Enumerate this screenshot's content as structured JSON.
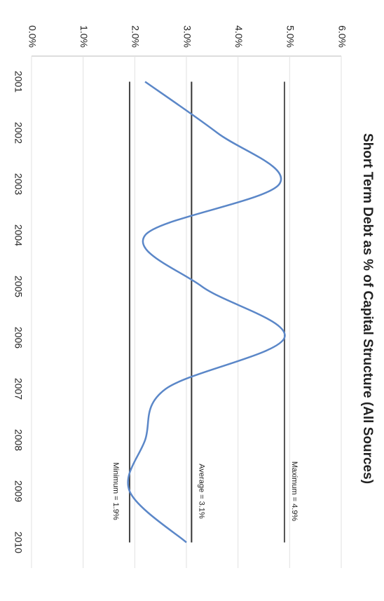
{
  "chart_data": {
    "type": "line",
    "title": "Short Term Debt as % of Capital Structure (All Sources)",
    "categories": [
      "2001",
      "2002",
      "2003",
      "2004",
      "2005",
      "2006",
      "2007",
      "2008",
      "2009",
      "2010"
    ],
    "series": [
      {
        "color": "#5b87c8",
        "values": [
          2.2,
          3.6,
          4.8,
          2.2,
          3.3,
          4.9,
          2.6,
          2.2,
          1.9,
          3.0
        ]
      }
    ],
    "reference_lines": [
      {
        "label": "Maximum = 4.9%",
        "value": 4.9,
        "color": "#555555"
      },
      {
        "label": "Average = 3.1%",
        "value": 3.1,
        "color": "#333333"
      },
      {
        "label": "Minimum = 1.9%",
        "value": 1.9,
        "color": "#444444"
      }
    ],
    "ylim": [
      0,
      6
    ],
    "yticks": [
      {
        "value": 0,
        "label": "0.0%"
      },
      {
        "value": 1,
        "label": "1.0%"
      },
      {
        "value": 2,
        "label": "2.0%"
      },
      {
        "value": 3,
        "label": "3.0%"
      },
      {
        "value": 4,
        "label": "4.0%"
      },
      {
        "value": 5,
        "label": "5.0%"
      },
      {
        "value": 6,
        "label": "6.0%"
      }
    ],
    "grid": true
  }
}
